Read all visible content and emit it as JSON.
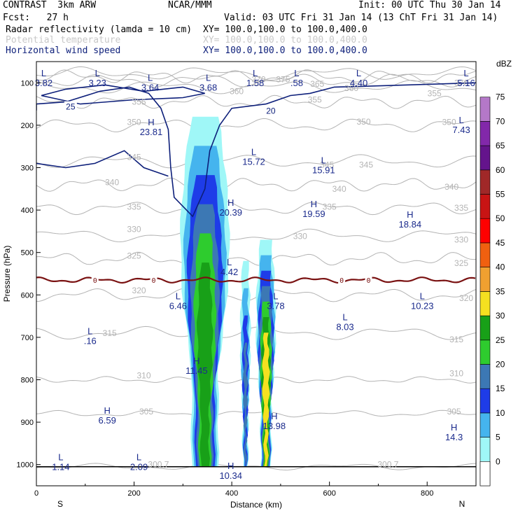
{
  "header": {
    "model": "CONTRAST  3km ARW",
    "org": "NCAR/MMM",
    "init": "Init: 00 UTC Thu 30 Jan 14",
    "fcst": "Fcst:   27 h",
    "valid": "Valid: 03 UTC Fri 31 Jan 14 (13 ChT Fri 31 Jan 14)",
    "field1_name": "Radar reflectivity (lamda = 10 cm)",
    "field1_xy": "XY= 100.0,100.0 to 100.0,400.0",
    "field2_name": "Potential temperature",
    "field2_xy": "XY= 100.0,100.0 to 100.0,400.0",
    "field3_name": "Horizontal wind speed",
    "field3_xy": "XY= 100.0,100.0 to 100.0,400.0"
  },
  "colors": {
    "wind": "#0d1f7a",
    "theta": "#b4b4b4",
    "freezing": "#7a1212",
    "labels_hl": "#1a2a8c"
  },
  "chart_data": {
    "type": "heatmap",
    "title": "",
    "xlabel": "Distance (km)",
    "ylabel": "Pressure (hPa)",
    "xlim": [
      0,
      900
    ],
    "ylim": [
      1050,
      50
    ],
    "x_ticks": [
      0,
      200,
      400,
      600,
      800
    ],
    "y_ticks": [
      100,
      200,
      300,
      400,
      500,
      600,
      700,
      800,
      900,
      1000
    ],
    "x_end_labels": [
      "S",
      "N"
    ],
    "colorbar": {
      "unit": "dBZ",
      "levels": [
        0,
        5,
        10,
        15,
        20,
        25,
        30,
        35,
        40,
        45,
        50,
        55,
        60,
        65,
        70,
        75
      ],
      "colors": [
        "#ffffff",
        "#9ff7f7",
        "#45b4ee",
        "#1e3ce8",
        "#3c78b4",
        "#2ecc2e",
        "#18a018",
        "#f5e020",
        "#f0a030",
        "#f06010",
        "#ff0000",
        "#c81414",
        "#a02828",
        "#64148c",
        "#8228aa",
        "#b478c8"
      ],
      "tick_labels": [
        "0",
        "5",
        "10",
        "15",
        "20",
        "25",
        "30",
        "35",
        "40",
        "45",
        "50",
        "55",
        "60",
        "65",
        "70",
        "75"
      ]
    },
    "reflectivity_cells": [
      {
        "x_center": 345,
        "x_halfwidth": 50,
        "p_top": 180,
        "p_bottom": 1005,
        "max_dbz": 32
      },
      {
        "x_center": 428,
        "x_halfwidth": 10,
        "p_top": 520,
        "p_bottom": 1005,
        "max_dbz": 22
      },
      {
        "x_center": 470,
        "x_halfwidth": 20,
        "p_top": 470,
        "p_bottom": 1005,
        "max_dbz": 38
      }
    ],
    "theta_contours": [
      {
        "value": 300.7,
        "pressure": 1005
      },
      {
        "value": 305,
        "pressure": 880
      },
      {
        "value": 310,
        "pressure": 800
      },
      {
        "value": 315,
        "pressure": 690
      },
      {
        "value": 320,
        "pressure": 600
      },
      {
        "value": 325,
        "pressure": 515
      },
      {
        "value": 330,
        "pressure": 460
      },
      {
        "value": 335,
        "pressure": 395
      },
      {
        "value": 340,
        "pressure": 340
      },
      {
        "value": 345,
        "pressure": 285
      },
      {
        "value": 350,
        "pressure": 200
      },
      {
        "value": 355,
        "pressure": 145
      },
      {
        "value": 360,
        "pressure": 110
      },
      {
        "value": 365,
        "pressure": 95
      },
      {
        "value": 370,
        "pressure": 85
      },
      {
        "value": 375,
        "pressure": 78
      }
    ],
    "theta_labels": [
      {
        "text": "300.7",
        "x": 250,
        "p": 1000
      },
      {
        "text": "300.7",
        "x": 720,
        "p": 1000
      },
      {
        "text": "305",
        "x": 225,
        "p": 875
      },
      {
        "text": "305",
        "x": 855,
        "p": 875
      },
      {
        "text": "310",
        "x": 220,
        "p": 790
      },
      {
        "text": "310",
        "x": 860,
        "p": 785
      },
      {
        "text": "315",
        "x": 150,
        "p": 690
      },
      {
        "text": "315",
        "x": 860,
        "p": 705
      },
      {
        "text": "320",
        "x": 210,
        "p": 590
      },
      {
        "text": "320",
        "x": 880,
        "p": 608
      },
      {
        "text": "325",
        "x": 200,
        "p": 508
      },
      {
        "text": "325",
        "x": 870,
        "p": 525
      },
      {
        "text": "330",
        "x": 200,
        "p": 445
      },
      {
        "text": "330",
        "x": 540,
        "p": 462
      },
      {
        "text": "330",
        "x": 870,
        "p": 470
      },
      {
        "text": "335",
        "x": 200,
        "p": 392
      },
      {
        "text": "335",
        "x": 600,
        "p": 392
      },
      {
        "text": "335",
        "x": 870,
        "p": 395
      },
      {
        "text": "340",
        "x": 155,
        "p": 335
      },
      {
        "text": "340",
        "x": 620,
        "p": 350
      },
      {
        "text": "340",
        "x": 850,
        "p": 345
      },
      {
        "text": "345",
        "x": 200,
        "p": 275
      },
      {
        "text": "345",
        "x": 595,
        "p": 293
      },
      {
        "text": "345",
        "x": 675,
        "p": 293
      },
      {
        "text": "350",
        "x": 200,
        "p": 193
      },
      {
        "text": "350",
        "x": 670,
        "p": 192
      },
      {
        "text": "350",
        "x": 845,
        "p": 193
      },
      {
        "text": "355",
        "x": 210,
        "p": 145
      },
      {
        "text": "355",
        "x": 570,
        "p": 140
      },
      {
        "text": "355",
        "x": 815,
        "p": 125
      },
      {
        "text": "360",
        "x": 410,
        "p": 120
      },
      {
        "text": "360",
        "x": 645,
        "p": 113
      },
      {
        "text": "365",
        "x": 575,
        "p": 103
      },
      {
        "text": "370",
        "x": 455,
        "p": 92
      },
      {
        "text": "370",
        "x": 870,
        "p": 100
      },
      {
        "text": "375",
        "x": 505,
        "p": 92
      }
    ],
    "wind_contours": [
      {
        "value": 20,
        "shape": "upper jet",
        "p_top": 70,
        "p_bottom": 415
      },
      {
        "value": 25,
        "shape": "left jet core",
        "p_top": 85,
        "p_bottom": 150
      }
    ],
    "wind_labels": [
      {
        "text": "25",
        "x": 70,
        "p": 155
      },
      {
        "text": "20",
        "x": 480,
        "p": 165
      }
    ],
    "freezing_level": {
      "label": "0",
      "p_mean": 565,
      "label_x": [
        120,
        240,
        625,
        680
      ]
    },
    "hl_markers": [
      {
        "letter": "L",
        "value": "3.82",
        "x": 15,
        "p": 85
      },
      {
        "letter": "L",
        "value": "3.23",
        "x": 125,
        "p": 85
      },
      {
        "letter": "L",
        "value": "3.64",
        "x": 233,
        "p": 95
      },
      {
        "letter": "L",
        "value": "3.68",
        "x": 352,
        "p": 95
      },
      {
        "letter": "L",
        "value": "1.58",
        "x": 448,
        "p": 85
      },
      {
        "letter": "L",
        "value": ".58",
        "x": 533,
        "p": 85
      },
      {
        "letter": "L",
        "value": "4.40",
        "x": 660,
        "p": 85
      },
      {
        "letter": "L",
        "value": "5.16",
        "x": 880,
        "p": 85
      },
      {
        "letter": "H",
        "value": "23.81",
        "x": 235,
        "p": 200
      },
      {
        "letter": "L",
        "value": "7.43",
        "x": 870,
        "p": 195
      },
      {
        "letter": "L",
        "value": "15.72",
        "x": 445,
        "p": 270
      },
      {
        "letter": "L",
        "value": "15.91",
        "x": 588,
        "p": 290
      },
      {
        "letter": "H",
        "value": "20.39",
        "x": 398,
        "p": 390
      },
      {
        "letter": "H",
        "value": "19.59",
        "x": 568,
        "p": 393
      },
      {
        "letter": "H",
        "value": "18.84",
        "x": 765,
        "p": 418
      },
      {
        "letter": "L",
        "value": "4.42",
        "x": 395,
        "p": 530
      },
      {
        "letter": "L",
        "value": "6.46",
        "x": 290,
        "p": 610
      },
      {
        "letter": "L",
        "value": "3.78",
        "x": 490,
        "p": 610
      },
      {
        "letter": "L",
        "value": "10.23",
        "x": 790,
        "p": 610
      },
      {
        "letter": "L",
        "value": "8.03",
        "x": 632,
        "p": 660
      },
      {
        "letter": "L",
        "value": ".16",
        "x": 110,
        "p": 693
      },
      {
        "letter": "H",
        "value": "11.45",
        "x": 328,
        "p": 763
      },
      {
        "letter": "H",
        "value": "6.59",
        "x": 145,
        "p": 880
      },
      {
        "letter": "H",
        "value": "13.98",
        "x": 487,
        "p": 893
      },
      {
        "letter": "H",
        "value": "14.3",
        "x": 855,
        "p": 920
      },
      {
        "letter": "L",
        "value": "1.14",
        "x": 50,
        "p": 990
      },
      {
        "letter": "L",
        "value": "2.09",
        "x": 210,
        "p": 990
      },
      {
        "letter": "H",
        "value": "10.34",
        "x": 398,
        "p": 1010
      }
    ]
  }
}
